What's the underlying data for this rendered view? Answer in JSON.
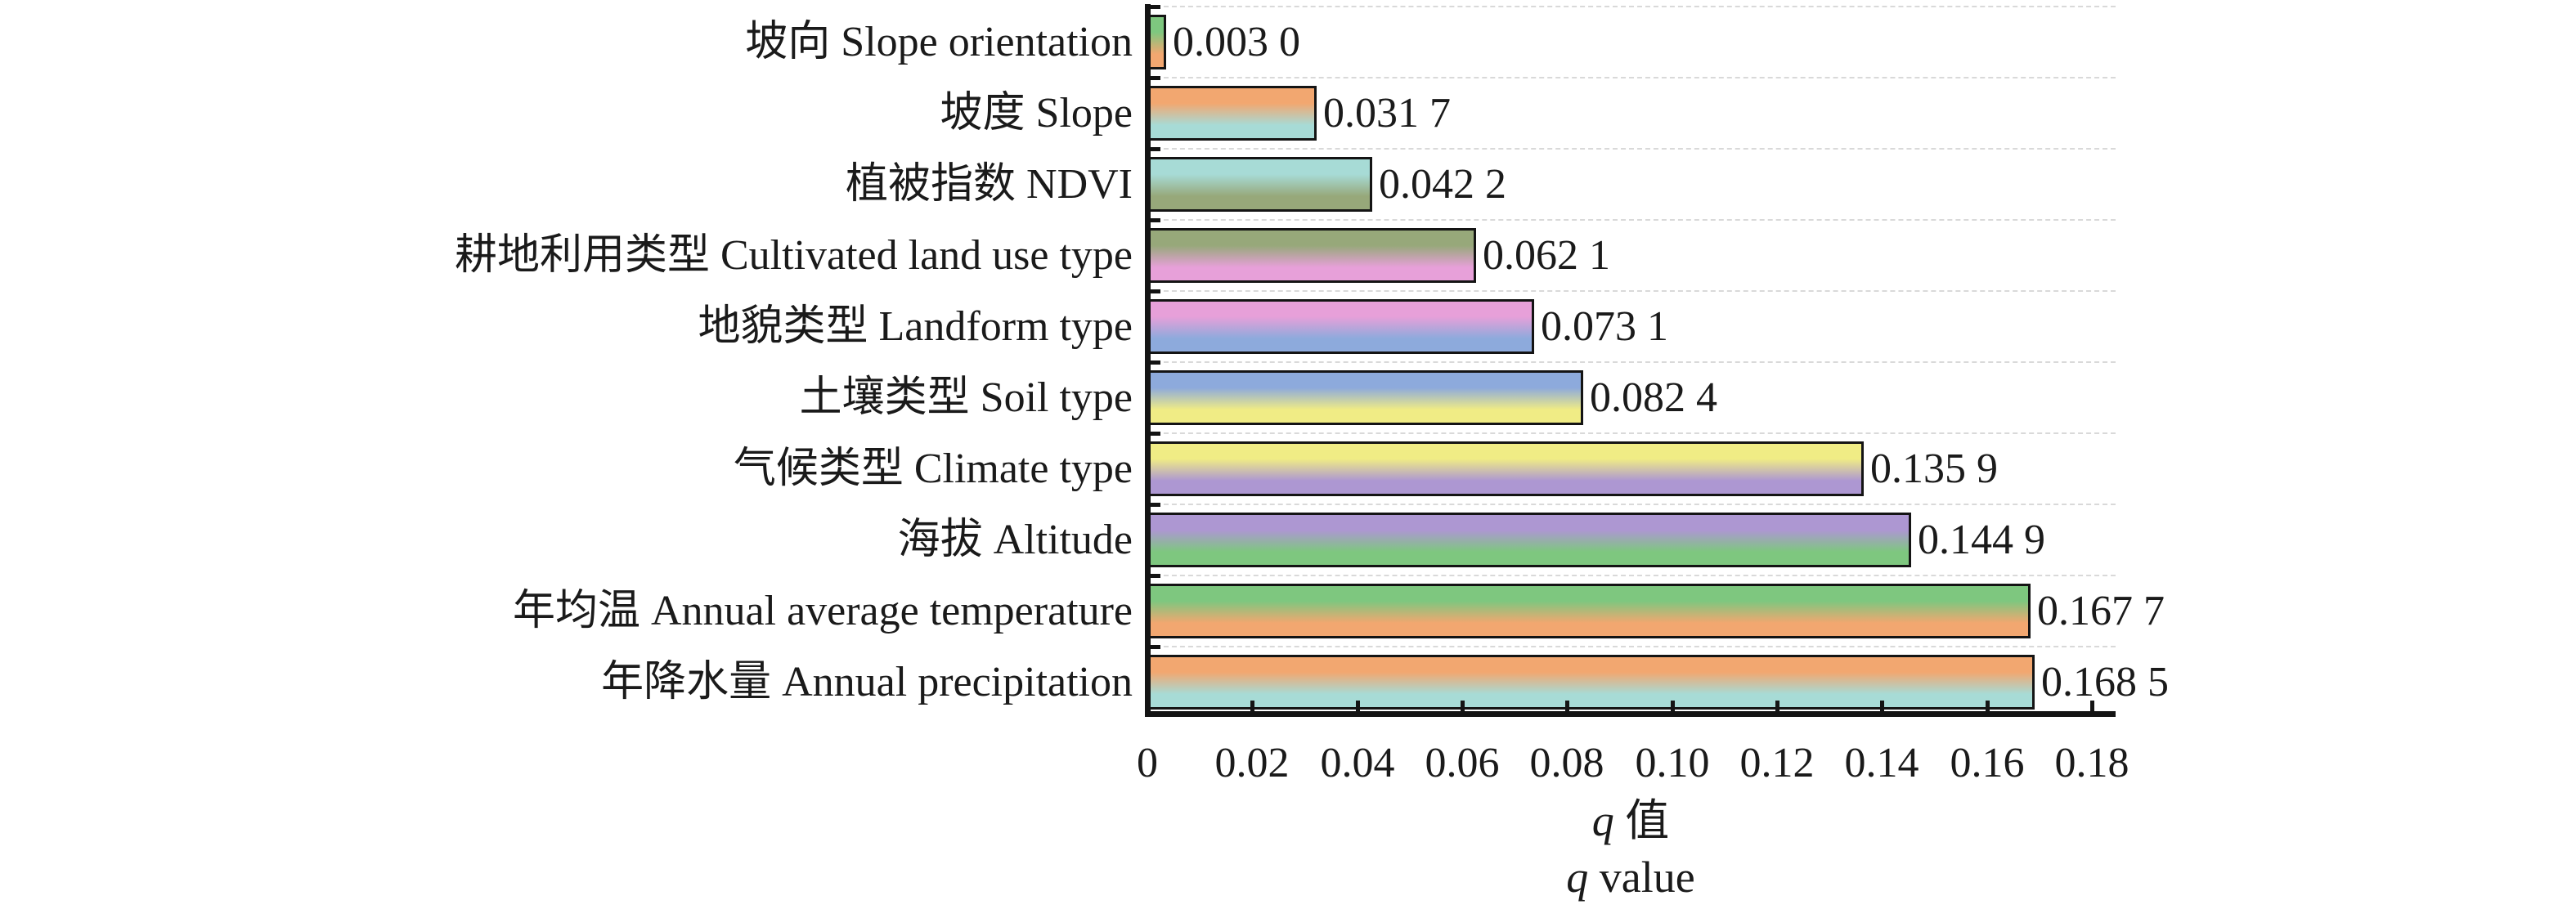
{
  "chart_data": {
    "type": "bar",
    "orientation": "horizontal",
    "title": "",
    "xlabel_line1": {
      "q": "q",
      "rest": "值"
    },
    "xlabel_line2": {
      "q": "q",
      "rest": "value"
    },
    "xlim": [
      0,
      0.18
    ],
    "xtick_values": [
      0,
      0.02,
      0.04,
      0.06,
      0.08,
      0.1,
      0.12,
      0.14,
      0.16,
      0.18
    ],
    "xtick_labels": [
      "0",
      "0.02",
      "0.04",
      "0.06",
      "0.08",
      "0.10",
      "0.12",
      "0.14",
      "0.16",
      "0.18"
    ],
    "grid": "faint dashed horizontal separators at category boundaries",
    "legend": "none",
    "axis_color": "#141414",
    "bars": [
      {
        "category_zh": "坡向",
        "category_en": "Slope orientation",
        "label": "坡向 Slope orientation",
        "value": 0.003,
        "value_label": "0.003 0",
        "color_top": "#7ec77f",
        "color_bottom": "#f2a770"
      },
      {
        "category_zh": "坡度",
        "category_en": "Slope",
        "label": "坡度 Slope",
        "value": 0.0317,
        "value_label": "0.031 7",
        "color_top": "#f2a770",
        "color_bottom": "#a7dbd6"
      },
      {
        "category_zh": "植被指数",
        "category_en": "NDVI",
        "label": "植被指数 NDVI",
        "value": 0.0422,
        "value_label": "0.042 2",
        "color_top": "#a7dbd6",
        "color_bottom": "#97a87a"
      },
      {
        "category_zh": "耕地利用类型",
        "category_en": "Cultivated land use type",
        "label": "耕地利用类型 Cultivated land use type",
        "value": 0.0621,
        "value_label": "0.062 1",
        "color_top": "#97a87a",
        "color_bottom": "#e7a0d9"
      },
      {
        "category_zh": "地貌类型",
        "category_en": "Landform type",
        "label": "地貌类型 Landform type",
        "value": 0.0731,
        "value_label": "0.073 1",
        "color_top": "#e7a0d9",
        "color_bottom": "#8daadc"
      },
      {
        "category_zh": "土壤类型",
        "category_en": "Soil type",
        "label": "土壤类型 Soil type",
        "value": 0.0824,
        "value_label": "0.082 4",
        "color_top": "#8daadc",
        "color_bottom": "#f0ec85"
      },
      {
        "category_zh": "气候类型",
        "category_en": "Climate type",
        "label": "气候类型 Climate type",
        "value": 0.1359,
        "value_label": "0.135 9",
        "color_top": "#f0ec85",
        "color_bottom": "#ad97d2"
      },
      {
        "category_zh": "海拔",
        "category_en": "Altitude",
        "label": "海拔 Altitude",
        "value": 0.1449,
        "value_label": "0.144 9",
        "color_top": "#ad97d2",
        "color_bottom": "#7ec77f"
      },
      {
        "category_zh": "年均温",
        "category_en": "Annual average temperature",
        "label": "年均温 Annual average temperature",
        "value": 0.1677,
        "value_label": "0.167 7",
        "color_top": "#7ec77f",
        "color_bottom": "#f2a770"
      },
      {
        "category_zh": "年降水量",
        "category_en": "Annual precipitation",
        "label": "年降水量 Annual precipitation",
        "value": 0.1685,
        "value_label": "0.168 5",
        "color_top": "#f2a770",
        "color_bottom": "#a7dbd6"
      }
    ]
  }
}
